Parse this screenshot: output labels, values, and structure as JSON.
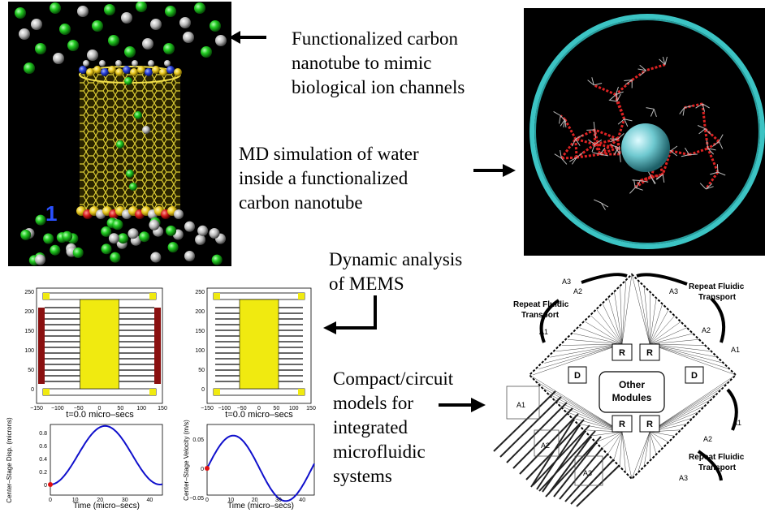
{
  "captions": {
    "nanotube": [
      "Functionalized carbon",
      "nanotube to mimic",
      "biological ion channels"
    ],
    "md": [
      "MD simulation of water",
      "inside a functionalized",
      "carbon nanotube"
    ],
    "mems": [
      "Dynamic analysis",
      "of MEMS"
    ],
    "compact": [
      "Compact/circuit",
      "models for",
      "integrated",
      "microfluidic",
      "systems"
    ]
  },
  "nanotube_axis_label": "1",
  "mems": {
    "left_title": "t=0.0 micro–secs",
    "right_title": "t=0.0 micro–secs",
    "top_y_ticks": [
      "250",
      "200",
      "150",
      "100",
      "50",
      "0"
    ],
    "top_x_ticks": [
      "−150",
      "−100",
      "−50",
      "0",
      "50",
      "100",
      "150"
    ],
    "disp_ylabel": "Center–Stage Disp. (microns)",
    "disp_yticks": [
      "0.8",
      "0.6",
      "0.4",
      "0.2",
      "0"
    ],
    "vel_ylabel": "Center–Stage Velocity (m/s)",
    "vel_yticks": [
      "0.05",
      "0",
      "−0.05"
    ],
    "xlabel": "Time (micro–secs)",
    "bottom_x_ticks": [
      "0",
      "10",
      "20",
      "30",
      "40"
    ]
  },
  "chip": {
    "repeat_label": [
      "Repeat Fluidic",
      "Transport"
    ],
    "a1": "A1",
    "a2": "A2",
    "a3": "A3",
    "r": "R",
    "d": "D",
    "other_modules": [
      "Other",
      "Modules"
    ]
  },
  "colors": {
    "nanotube": "#e8d838",
    "ion": "#22cc22",
    "water_ring": "#40c8c8",
    "water_network": "#dd2222",
    "curve": "#1010cc",
    "mems_stage": "#f0ea10"
  }
}
